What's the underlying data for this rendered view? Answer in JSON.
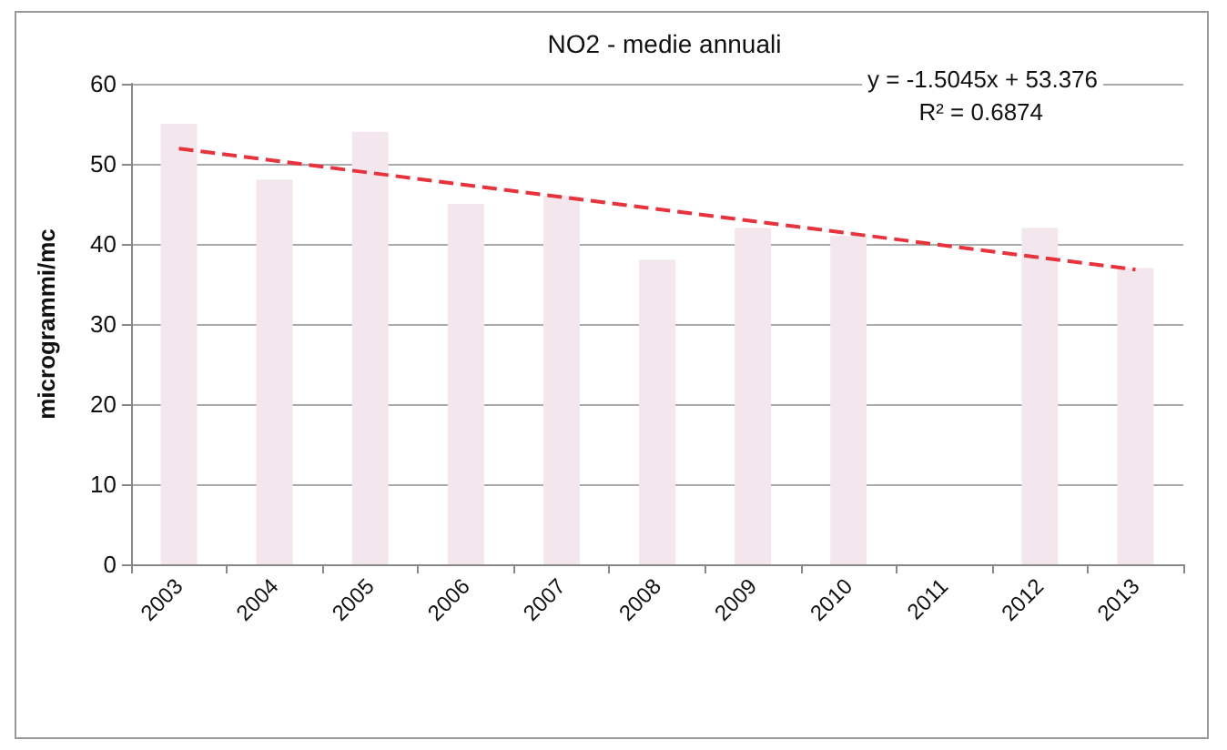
{
  "chart_data": {
    "type": "bar",
    "title": "NO2 - medie annuali",
    "ylabel": "microgrammi/mc",
    "categories": [
      "2003",
      "2004",
      "2005",
      "2006",
      "2007",
      "2008",
      "2009",
      "2010",
      "2011",
      "2012",
      "2013"
    ],
    "series": [
      {
        "color": "#f3e6ec",
        "values": [
          55,
          48,
          54,
          45,
          46,
          38,
          42,
          41,
          null,
          42,
          37
        ]
      },
      {
        "type": "line",
        "color": "#e8323c",
        "line_style": "dashed",
        "marker": "none",
        "values": [
          51.9,
          null,
          null,
          null,
          null,
          null,
          null,
          null,
          null,
          null,
          36.8
        ]
      }
    ],
    "ylim": [
      0,
      60
    ],
    "yticks": [
      0,
      10,
      20,
      30,
      40,
      50,
      60
    ],
    "grid": "y",
    "annotations": [
      "y = -1.5045x + 53.376",
      "R² = 0.6874"
    ]
  }
}
